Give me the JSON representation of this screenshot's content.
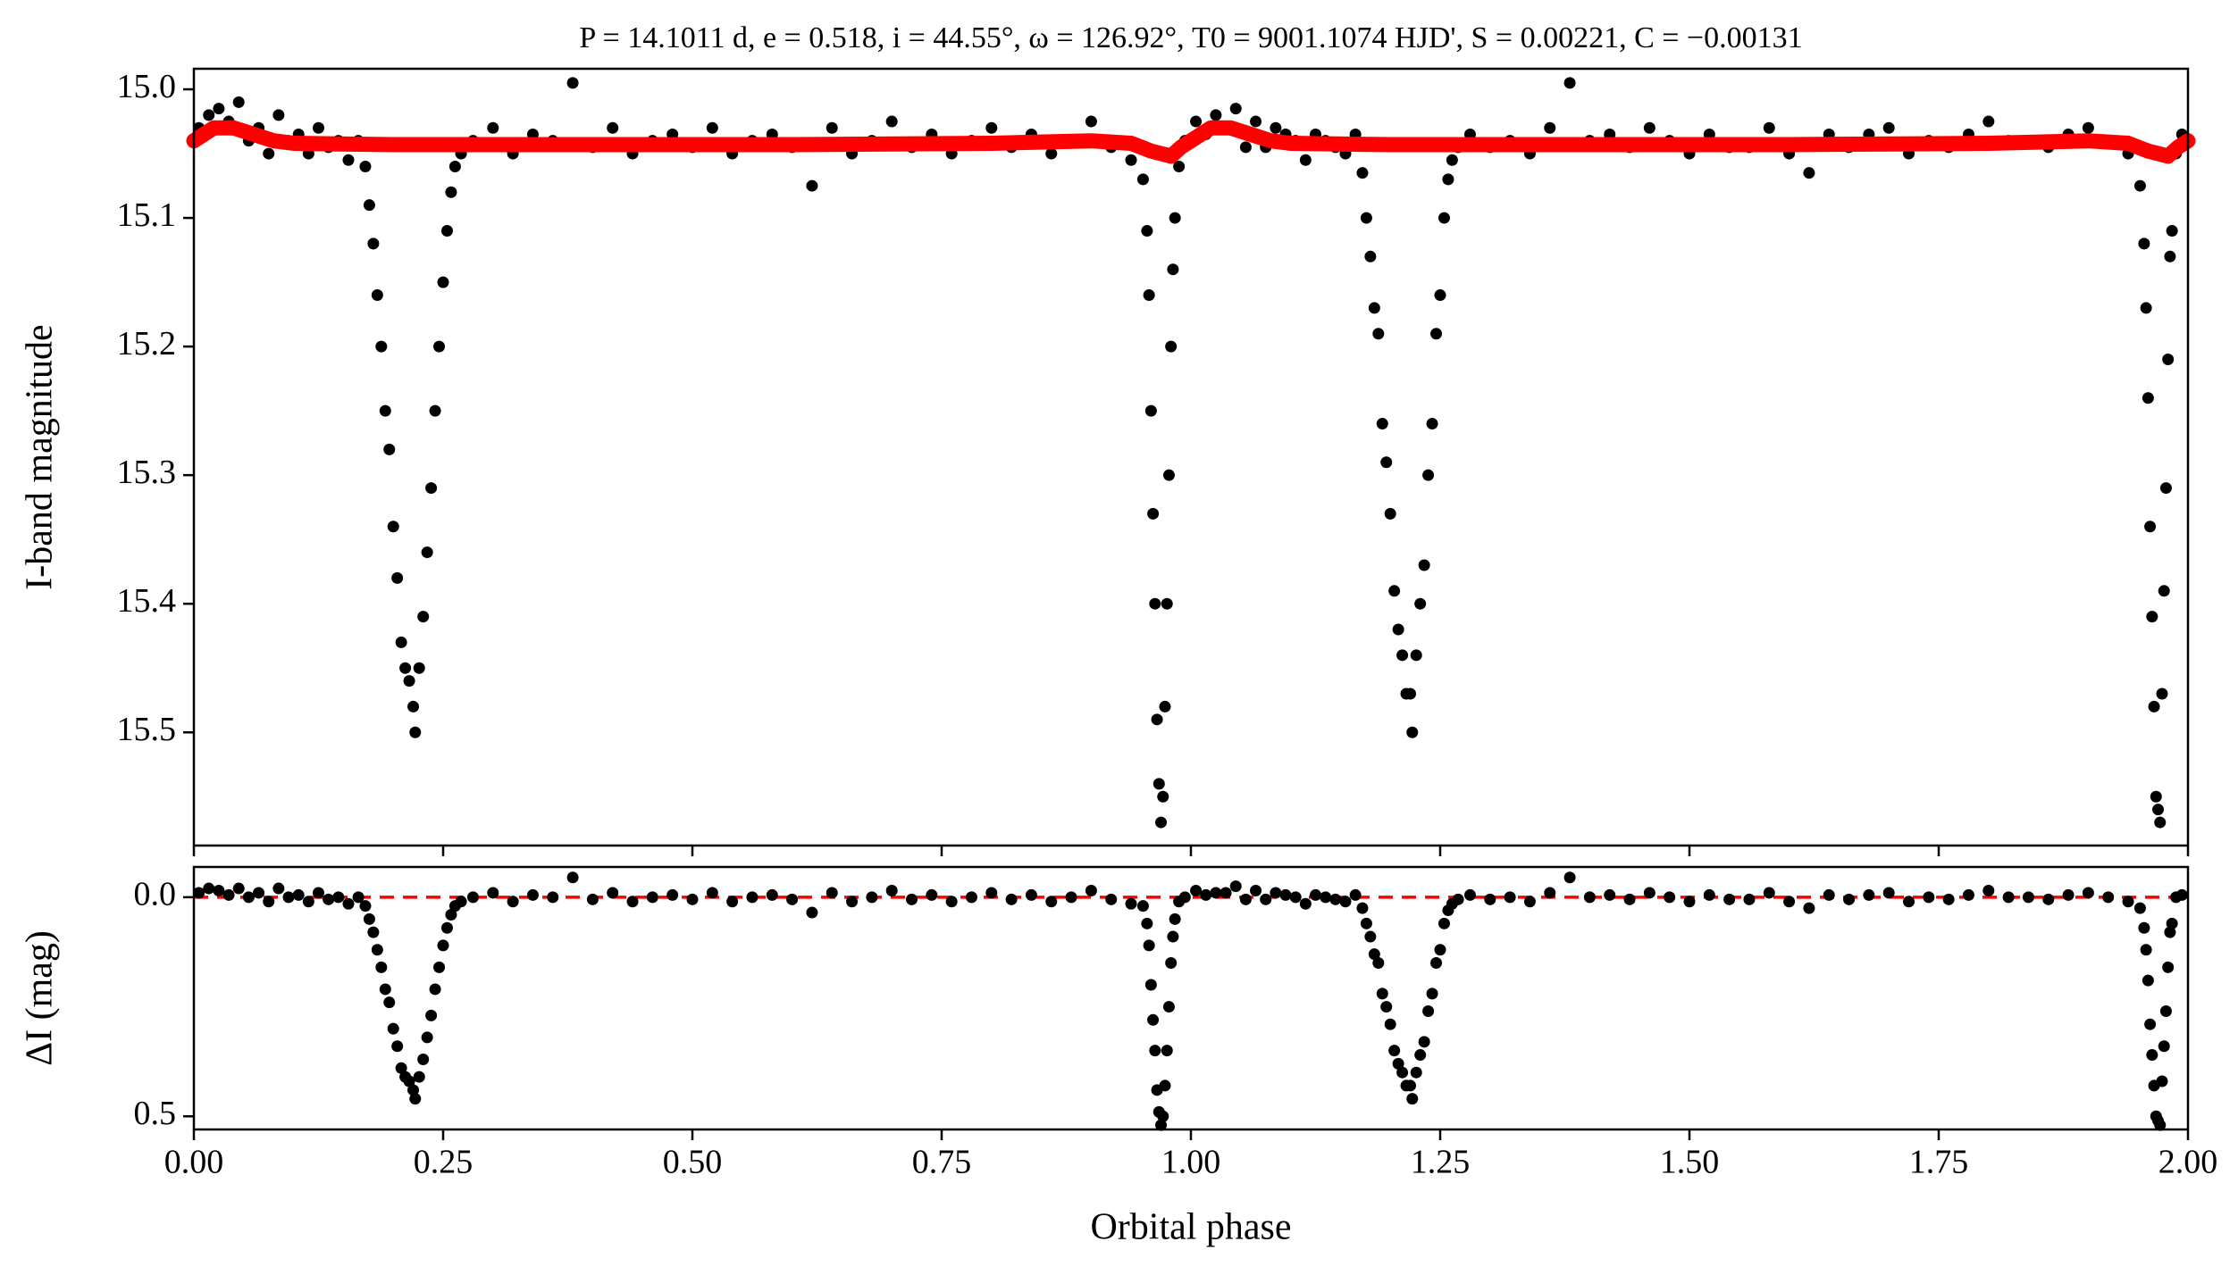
{
  "chart_data": [
    {
      "type": "scatter",
      "title": "P = 14.1011 d, e = 0.518, i = 44.55°, ω = 126.92°, T0 = 9001.1074 HJD', S = 0.00221, C = −0.00131",
      "y_label": "I-band magnitude",
      "xlim": [
        0,
        2
      ],
      "xticks": [
        0,
        0.25,
        0.5,
        0.75,
        1,
        1.25,
        1.5,
        1.75,
        2
      ],
      "ylim": [
        15.588,
        14.984
      ],
      "inverted_y": true,
      "yticks": [
        {
          "value": 15,
          "label": "15.0"
        },
        15.1,
        15.2,
        15.3,
        15.4,
        15.5
      ],
      "color": "#000000",
      "x": [
        0.005,
        0.015,
        0.025,
        0.035,
        0.045,
        0.055,
        0.065,
        0.075,
        0.085,
        0.095,
        0.105,
        0.115,
        0.125,
        0.135,
        0.145,
        0.155,
        0.165,
        0.172,
        0.176,
        0.18,
        0.184,
        0.188,
        0.192,
        0.196,
        0.2,
        0.204,
        0.208,
        0.212,
        0.216,
        0.22,
        0.222,
        0.226,
        0.23,
        0.234,
        0.238,
        0.242,
        0.246,
        0.25,
        0.254,
        0.258,
        0.262,
        0.268,
        0.28,
        0.3,
        0.32,
        0.34,
        0.36,
        0.38,
        0.4,
        0.42,
        0.44,
        0.46,
        0.48,
        0.5,
        0.52,
        0.54,
        0.56,
        0.58,
        0.6,
        0.62,
        0.64,
        0.66,
        0.68,
        0.7,
        0.72,
        0.74,
        0.76,
        0.78,
        0.8,
        0.82,
        0.84,
        0.86,
        0.88,
        0.9,
        0.92,
        0.94,
        0.952,
        0.956,
        0.958,
        0.96,
        0.962,
        0.964,
        0.966,
        0.968,
        0.97,
        0.972,
        0.974,
        0.976,
        0.978,
        0.98,
        0.982,
        0.984,
        0.988,
        0.994,
        1.005,
        1.015,
        1.025,
        1.035,
        1.045,
        1.055,
        1.065,
        1.075,
        1.085,
        1.095,
        1.105,
        1.115,
        1.125,
        1.135,
        1.145,
        1.155,
        1.165,
        1.172,
        1.176,
        1.18,
        1.184,
        1.188,
        1.192,
        1.196,
        1.2,
        1.204,
        1.208,
        1.212,
        1.216,
        1.22,
        1.222,
        1.226,
        1.23,
        1.234,
        1.238,
        1.242,
        1.246,
        1.25,
        1.254,
        1.258,
        1.262,
        1.268,
        1.28,
        1.3,
        1.32,
        1.34,
        1.36,
        1.38,
        1.4,
        1.42,
        1.44,
        1.46,
        1.48,
        1.5,
        1.52,
        1.54,
        1.56,
        1.58,
        1.6,
        1.62,
        1.64,
        1.66,
        1.68,
        1.7,
        1.72,
        1.74,
        1.76,
        1.78,
        1.8,
        1.82,
        1.84,
        1.86,
        1.88,
        1.9,
        1.92,
        1.94,
        1.952,
        1.956,
        1.958,
        1.96,
        1.962,
        1.964,
        1.966,
        1.968,
        1.97,
        1.972,
        1.974,
        1.976,
        1.978,
        1.98,
        1.982,
        1.984,
        1.988,
        1.994
      ],
      "y": [
        15.03,
        15.02,
        15.015,
        15.025,
        15.01,
        15.04,
        15.03,
        15.05,
        15.02,
        15.04,
        15.035,
        15.05,
        15.03,
        15.045,
        15.04,
        15.055,
        15.04,
        15.06,
        15.09,
        15.12,
        15.16,
        15.2,
        15.25,
        15.28,
        15.34,
        15.38,
        15.43,
        15.45,
        15.46,
        15.48,
        15.5,
        15.45,
        15.41,
        15.36,
        15.31,
        15.25,
        15.2,
        15.15,
        15.11,
        15.08,
        15.06,
        15.05,
        15.04,
        15.03,
        15.05,
        15.035,
        15.04,
        14.995,
        15.045,
        15.03,
        15.05,
        15.04,
        15.035,
        15.045,
        15.03,
        15.05,
        15.04,
        15.035,
        15.045,
        15.075,
        15.03,
        15.05,
        15.04,
        15.025,
        15.045,
        15.035,
        15.05,
        15.04,
        15.03,
        15.045,
        15.035,
        15.05,
        15.04,
        15.025,
        15.045,
        15.055,
        15.07,
        15.11,
        15.16,
        15.25,
        15.33,
        15.4,
        15.49,
        15.54,
        15.57,
        15.55,
        15.48,
        15.4,
        15.3,
        15.2,
        15.14,
        15.1,
        15.06,
        15.04,
        15.025,
        15.035,
        15.02,
        15.03,
        15.015,
        15.045,
        15.025,
        15.045,
        15.03,
        15.035,
        15.04,
        15.055,
        15.035,
        15.04,
        15.045,
        15.05,
        15.035,
        15.065,
        15.1,
        15.13,
        15.17,
        15.19,
        15.26,
        15.29,
        15.33,
        15.39,
        15.42,
        15.44,
        15.47,
        15.47,
        15.5,
        15.44,
        15.4,
        15.37,
        15.3,
        15.26,
        15.19,
        15.16,
        15.1,
        15.07,
        15.055,
        15.045,
        15.035,
        15.045,
        15.04,
        15.05,
        15.03,
        14.995,
        15.04,
        15.035,
        15.045,
        15.03,
        15.04,
        15.05,
        15.035,
        15.045,
        15.045,
        15.03,
        15.05,
        15.065,
        15.035,
        15.045,
        15.035,
        15.03,
        15.05,
        15.04,
        15.045,
        15.035,
        15.025,
        15.04,
        15.04,
        15.045,
        15.035,
        15.03,
        15.04,
        15.05,
        15.075,
        15.12,
        15.17,
        15.24,
        15.34,
        15.41,
        15.48,
        15.55,
        15.56,
        15.57,
        15.47,
        15.39,
        15.31,
        15.21,
        15.13,
        15.11,
        15.05,
        15.035
      ],
      "model": {
        "color": "#ff0000",
        "x": [
          0,
          0.02,
          0.04,
          0.06,
          0.08,
          0.1,
          0.2,
          0.4,
          0.6,
          0.8,
          0.9,
          0.94,
          0.96,
          0.98,
          0.99,
          1,
          1.02,
          1.04,
          1.06,
          1.08,
          1.1,
          1.2,
          1.4,
          1.6,
          1.8,
          1.9,
          1.94,
          1.96,
          1.98,
          1.99,
          2
        ],
        "y": [
          15.04,
          15.03,
          15.03,
          15.035,
          15.04,
          15.042,
          15.043,
          15.043,
          15.043,
          15.042,
          15.04,
          15.042,
          15.048,
          15.052,
          15.045,
          15.04,
          15.03,
          15.03,
          15.035,
          15.04,
          15.042,
          15.043,
          15.043,
          15.043,
          15.042,
          15.04,
          15.042,
          15.048,
          15.052,
          15.045,
          15.04
        ]
      }
    },
    {
      "type": "scatter",
      "y_label": "ΔI (mag)",
      "x_label": "Orbital phase",
      "xlim": [
        0,
        2
      ],
      "xticks": [
        {
          "value": 0,
          "label": "0.00"
        },
        {
          "value": 0.25,
          "label": "0.25"
        },
        {
          "value": 0.5,
          "label": "0.50"
        },
        {
          "value": 0.75,
          "label": "0.75"
        },
        {
          "value": 1,
          "label": "1.00"
        },
        {
          "value": 1.25,
          "label": "1.25"
        },
        {
          "value": 1.5,
          "label": "1.50"
        },
        {
          "value": 1.75,
          "label": "1.75"
        },
        {
          "value": 2,
          "label": "2.00"
        }
      ],
      "ylim": [
        0.53,
        -0.069
      ],
      "inverted_y": true,
      "yticks": [
        {
          "value": 0,
          "label": "0.0"
        },
        0.5
      ],
      "color": "#000000",
      "reference_line": {
        "value": 0,
        "color": "#ff0000"
      },
      "x": [
        0.005,
        0.015,
        0.025,
        0.035,
        0.045,
        0.055,
        0.065,
        0.075,
        0.085,
        0.095,
        0.105,
        0.115,
        0.125,
        0.135,
        0.145,
        0.155,
        0.165,
        0.172,
        0.176,
        0.18,
        0.184,
        0.188,
        0.192,
        0.196,
        0.2,
        0.204,
        0.208,
        0.212,
        0.216,
        0.22,
        0.222,
        0.226,
        0.23,
        0.234,
        0.238,
        0.242,
        0.246,
        0.25,
        0.254,
        0.258,
        0.262,
        0.268,
        0.28,
        0.3,
        0.32,
        0.34,
        0.36,
        0.38,
        0.4,
        0.42,
        0.44,
        0.46,
        0.48,
        0.5,
        0.52,
        0.54,
        0.56,
        0.58,
        0.6,
        0.62,
        0.64,
        0.66,
        0.68,
        0.7,
        0.72,
        0.74,
        0.76,
        0.78,
        0.8,
        0.82,
        0.84,
        0.86,
        0.88,
        0.9,
        0.92,
        0.94,
        0.952,
        0.956,
        0.958,
        0.96,
        0.962,
        0.964,
        0.966,
        0.968,
        0.97,
        0.972,
        0.974,
        0.976,
        0.978,
        0.98,
        0.982,
        0.984,
        0.988,
        0.994,
        1.005,
        1.015,
        1.025,
        1.035,
        1.045,
        1.055,
        1.065,
        1.075,
        1.085,
        1.095,
        1.105,
        1.115,
        1.125,
        1.135,
        1.145,
        1.155,
        1.165,
        1.172,
        1.176,
        1.18,
        1.184,
        1.188,
        1.192,
        1.196,
        1.2,
        1.204,
        1.208,
        1.212,
        1.216,
        1.22,
        1.222,
        1.226,
        1.23,
        1.234,
        1.238,
        1.242,
        1.246,
        1.25,
        1.254,
        1.258,
        1.262,
        1.268,
        1.28,
        1.3,
        1.32,
        1.34,
        1.36,
        1.38,
        1.4,
        1.42,
        1.44,
        1.46,
        1.48,
        1.5,
        1.52,
        1.54,
        1.56,
        1.58,
        1.6,
        1.62,
        1.64,
        1.66,
        1.68,
        1.7,
        1.72,
        1.74,
        1.76,
        1.78,
        1.8,
        1.82,
        1.84,
        1.86,
        1.88,
        1.9,
        1.92,
        1.94,
        1.952,
        1.956,
        1.958,
        1.96,
        1.962,
        1.964,
        1.966,
        1.968,
        1.97,
        1.972,
        1.974,
        1.976,
        1.978,
        1.98,
        1.982,
        1.984,
        1.988,
        1.994
      ],
      "y": [
        -0.01,
        -0.02,
        -0.015,
        -0.005,
        -0.02,
        0,
        -0.01,
        0.01,
        -0.02,
        0,
        -0.005,
        0.01,
        -0.01,
        0.005,
        0,
        0.015,
        0,
        0.02,
        0.05,
        0.08,
        0.12,
        0.16,
        0.21,
        0.24,
        0.3,
        0.34,
        0.39,
        0.41,
        0.42,
        0.44,
        0.46,
        0.41,
        0.37,
        0.32,
        0.27,
        0.21,
        0.16,
        0.11,
        0.07,
        0.04,
        0.02,
        0.01,
        0,
        -0.01,
        0.01,
        -0.005,
        0,
        -0.045,
        0.005,
        -0.01,
        0.01,
        0,
        -0.005,
        0.005,
        -0.01,
        0.01,
        0,
        -0.005,
        0.005,
        0.035,
        -0.01,
        0.01,
        0,
        -0.015,
        0.005,
        -0.005,
        0.01,
        0,
        -0.01,
        0.005,
        -0.005,
        0.01,
        0,
        -0.015,
        0.005,
        0.015,
        0.02,
        0.06,
        0.11,
        0.2,
        0.28,
        0.35,
        0.44,
        0.49,
        0.52,
        0.5,
        0.43,
        0.35,
        0.25,
        0.15,
        0.09,
        0.05,
        0.01,
        0,
        -0.015,
        -0.005,
        -0.01,
        -0.01,
        -0.025,
        0.005,
        -0.015,
        0.005,
        -0.01,
        -0.005,
        0,
        0.015,
        -0.005,
        0,
        0.005,
        0.01,
        -0.005,
        0.025,
        0.06,
        0.09,
        0.13,
        0.15,
        0.22,
        0.25,
        0.29,
        0.35,
        0.38,
        0.4,
        0.43,
        0.43,
        0.46,
        0.4,
        0.36,
        0.33,
        0.26,
        0.22,
        0.15,
        0.12,
        0.06,
        0.03,
        0.015,
        0.005,
        -0.005,
        0.005,
        0,
        0.01,
        -0.01,
        -0.045,
        0,
        -0.005,
        0.005,
        -0.01,
        0,
        0.01,
        -0.005,
        0.005,
        0.005,
        -0.01,
        0.01,
        0.025,
        -0.005,
        0.005,
        -0.005,
        -0.01,
        0.01,
        0,
        0.005,
        -0.005,
        -0.015,
        0,
        0,
        0.005,
        -0.005,
        -0.01,
        0,
        0.01,
        0.025,
        0.07,
        0.12,
        0.19,
        0.29,
        0.36,
        0.43,
        0.5,
        0.51,
        0.52,
        0.42,
        0.34,
        0.26,
        0.16,
        0.08,
        0.06,
        0,
        -0.005
      ]
    }
  ]
}
